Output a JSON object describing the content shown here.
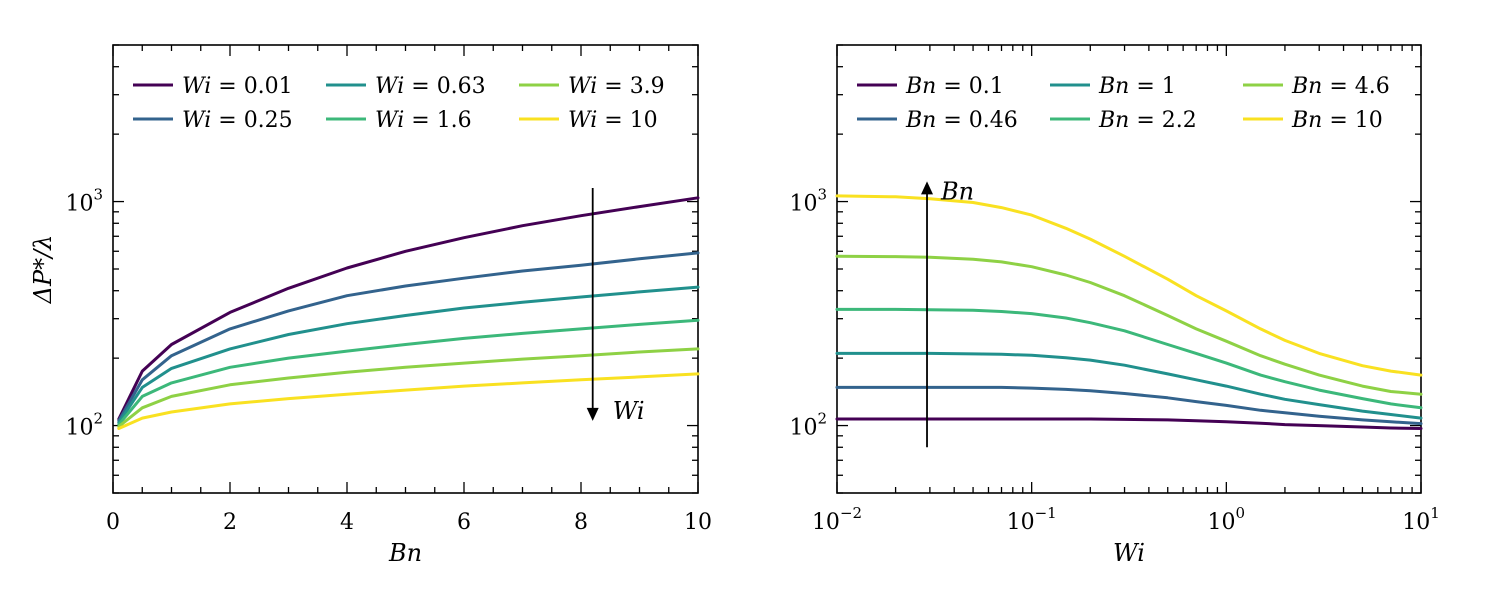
{
  "chart_data": [
    {
      "type": "line",
      "panel": "left",
      "xscale": "linear",
      "yscale": "log",
      "xlim": [
        0,
        10
      ],
      "ylim": [
        50,
        5000
      ],
      "xticks": [
        0,
        2,
        4,
        6,
        8,
        10
      ],
      "xtick_labels": [
        "0",
        "2",
        "4",
        "6",
        "8",
        "10"
      ],
      "ytick_labels": [
        {
          "value": 100,
          "base": "10",
          "exp": "2"
        },
        {
          "value": 1000,
          "base": "10",
          "exp": "3"
        }
      ],
      "xlabel": "Bn",
      "ylabel": "ΔP*/λ",
      "x": [
        0.1,
        0.5,
        1,
        2,
        3,
        4,
        5,
        6,
        7,
        8,
        9,
        10
      ],
      "series": [
        {
          "name": "Wi = 0.01",
          "label_var": "Wi",
          "label_val": "0.01",
          "color": "#440154",
          "values": [
            107,
            175,
            230,
            320,
            410,
            505,
            600,
            690,
            780,
            865,
            950,
            1040
          ]
        },
        {
          "name": "Wi = 0.25",
          "label_var": "Wi",
          "label_val": "0.25",
          "color": "#33638d",
          "values": [
            105,
            160,
            205,
            270,
            325,
            380,
            420,
            455,
            490,
            520,
            555,
            590
          ]
        },
        {
          "name": "Wi = 0.63",
          "label_var": "Wi",
          "label_val": "0.63",
          "color": "#21908d",
          "values": [
            103,
            148,
            180,
            220,
            255,
            285,
            310,
            335,
            355,
            375,
            395,
            415
          ]
        },
        {
          "name": "Wi = 1.6",
          "label_var": "Wi",
          "label_val": "1.6",
          "color": "#3cb87a",
          "values": [
            101,
            135,
            155,
            182,
            200,
            215,
            230,
            245,
            258,
            270,
            283,
            295
          ]
        },
        {
          "name": "Wi = 3.9",
          "label_var": "Wi",
          "label_val": "3.9",
          "color": "#8ed145",
          "values": [
            99,
            120,
            135,
            152,
            163,
            173,
            182,
            190,
            198,
            205,
            213,
            220
          ]
        },
        {
          "name": "Wi = 10",
          "label_var": "Wi",
          "label_val": "10",
          "color": "#f9e121",
          "values": [
            97,
            108,
            115,
            125,
            132,
            138,
            144,
            150,
            155,
            160,
            165,
            170
          ]
        }
      ],
      "annotation": {
        "text": "Wi",
        "direction": "down",
        "x": 8.2,
        "y_from": 1150,
        "y_to": 105
      }
    },
    {
      "type": "line",
      "panel": "right",
      "xscale": "log",
      "yscale": "log",
      "xlim": [
        0.01,
        10
      ],
      "ylim": [
        50,
        5000
      ],
      "xtick_labels": [
        {
          "value": 0.01,
          "base": "10",
          "exp": "−2"
        },
        {
          "value": 0.1,
          "base": "10",
          "exp": "−1"
        },
        {
          "value": 1,
          "base": "10",
          "exp": "0"
        },
        {
          "value": 10,
          "base": "10",
          "exp": "1"
        }
      ],
      "ytick_labels": [
        {
          "value": 100,
          "base": "10",
          "exp": "2"
        },
        {
          "value": 1000,
          "base": "10",
          "exp": "3"
        }
      ],
      "xlabel": "Wi",
      "ylabel": "",
      "x": [
        0.01,
        0.02,
        0.03,
        0.05,
        0.07,
        0.1,
        0.15,
        0.2,
        0.3,
        0.5,
        0.7,
        1,
        1.5,
        2,
        3,
        5,
        7,
        10
      ],
      "series": [
        {
          "name": "Bn = 0.1",
          "label_var": "Bn",
          "label_val": "0.1",
          "color": "#440154",
          "values": [
            107,
            107,
            107,
            107,
            107,
            107,
            107,
            107,
            106.5,
            106,
            105,
            104,
            102.5,
            101,
            100,
            98.5,
            97.5,
            97
          ]
        },
        {
          "name": "Bn = 0.46",
          "label_var": "Bn",
          "label_val": "0.46",
          "color": "#33638d",
          "values": [
            148,
            148,
            148,
            148,
            148,
            147,
            145,
            143,
            139,
            133,
            128,
            123,
            117,
            114,
            110,
            106,
            104,
            102
          ]
        },
        {
          "name": "Bn = 1",
          "label_var": "Bn",
          "label_val": "1",
          "color": "#21908d",
          "values": [
            210,
            210,
            210,
            209,
            208,
            206,
            201,
            196,
            186,
            170,
            160,
            150,
            138,
            131,
            124,
            116,
            112,
            108
          ]
        },
        {
          "name": "Bn = 2.2",
          "label_var": "Bn",
          "label_val": "2.2",
          "color": "#3cb87a",
          "values": [
            330,
            330,
            329,
            327,
            323,
            316,
            302,
            288,
            265,
            230,
            210,
            190,
            168,
            157,
            144,
            132,
            125,
            120
          ]
        },
        {
          "name": "Bn = 4.6",
          "label_var": "Bn",
          "label_val": "4.6",
          "color": "#8ed145",
          "values": [
            570,
            568,
            564,
            553,
            538,
            512,
            470,
            435,
            380,
            310,
            270,
            238,
            205,
            188,
            168,
            150,
            142,
            138
          ]
        },
        {
          "name": "Bn = 10",
          "label_var": "Bn",
          "label_val": "10",
          "color": "#f9e121",
          "values": [
            1060,
            1050,
            1030,
            990,
            940,
            870,
            760,
            680,
            570,
            450,
            380,
            325,
            270,
            240,
            210,
            185,
            175,
            168
          ]
        }
      ],
      "annotation": {
        "text": "Bn",
        "direction": "up",
        "x": 0.029,
        "y_from": 80,
        "y_to": 1230
      }
    }
  ]
}
